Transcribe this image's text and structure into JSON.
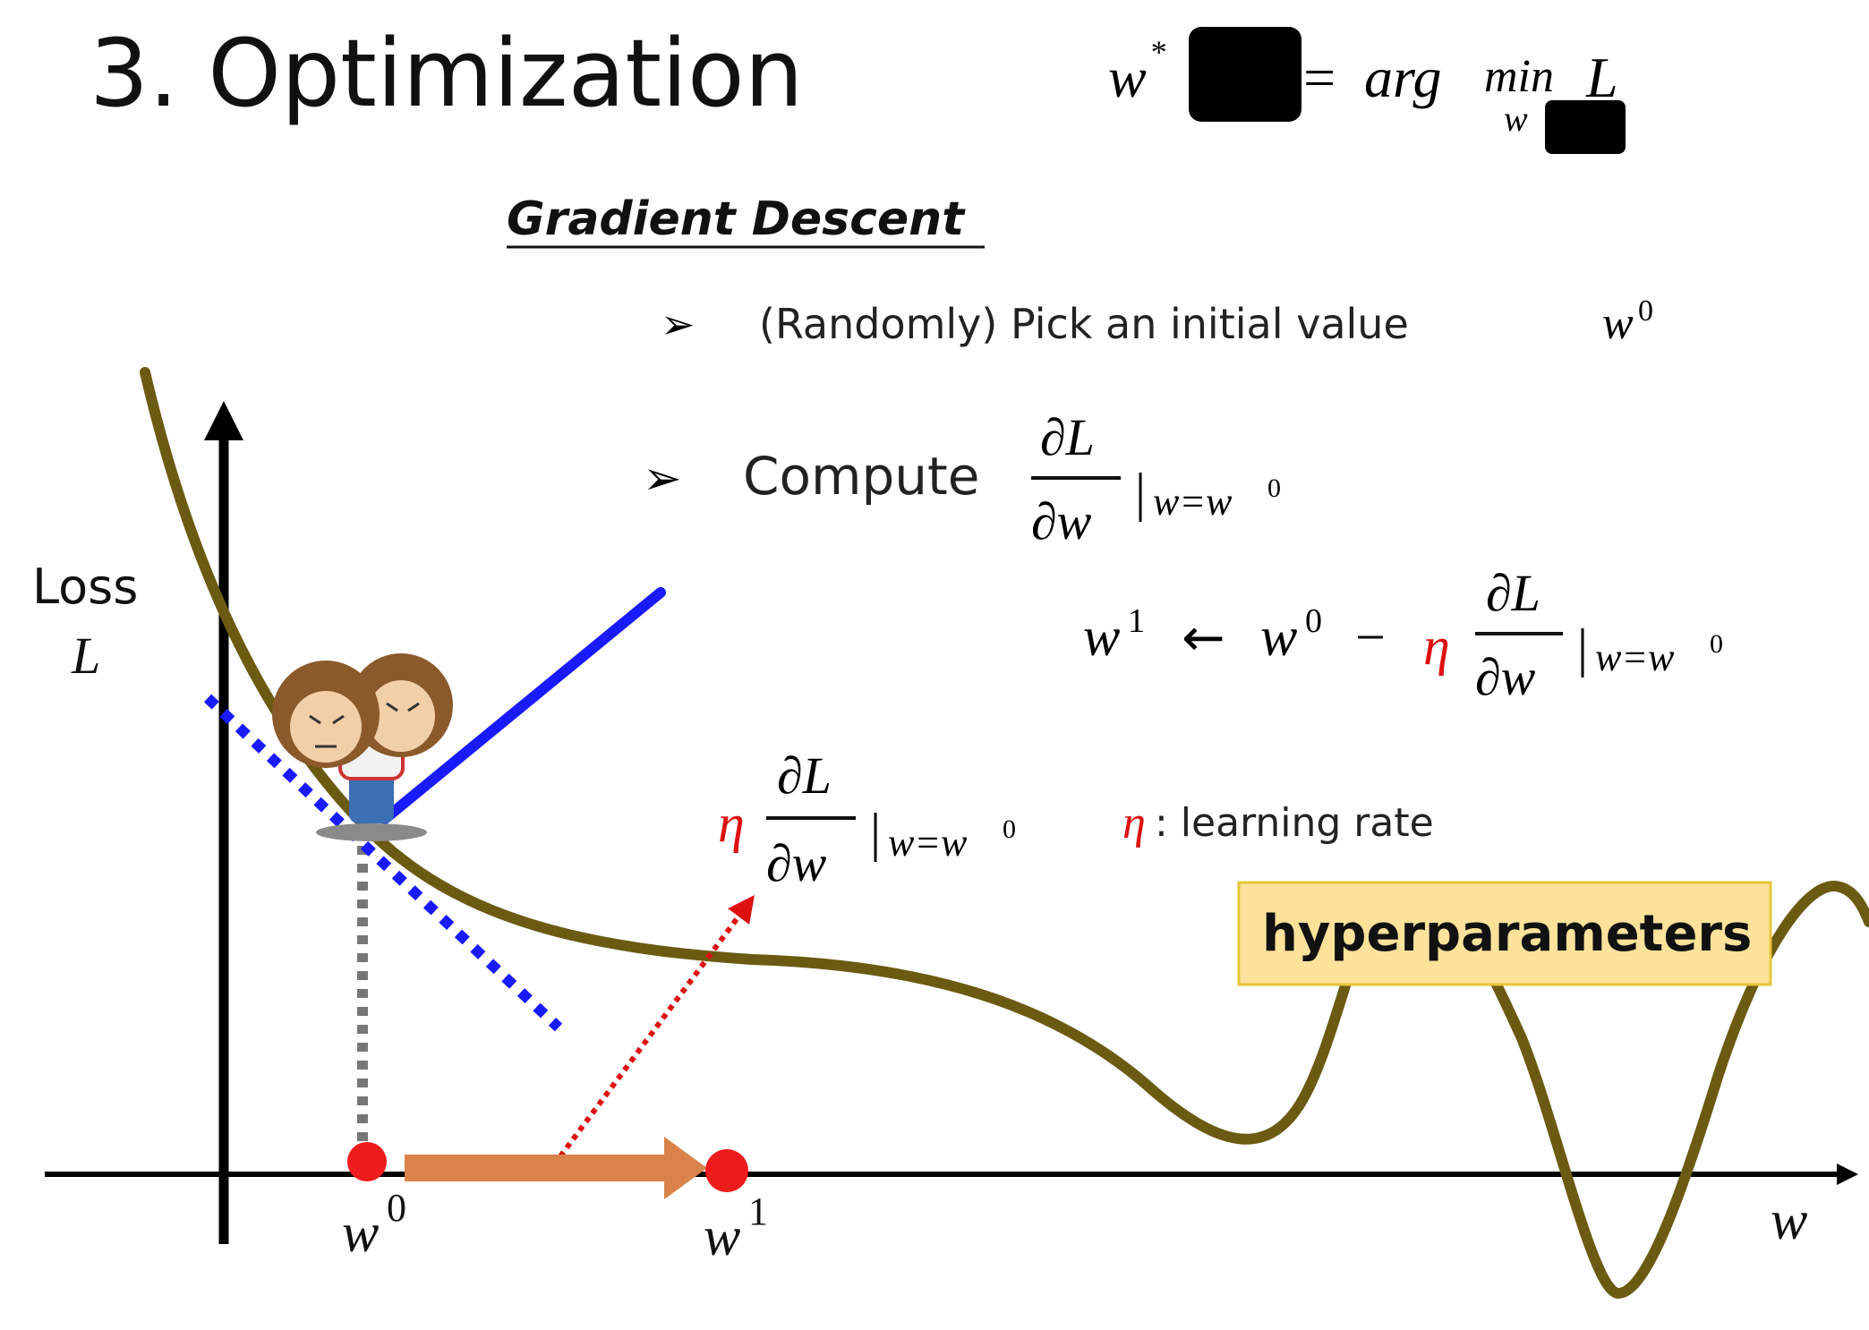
{
  "title": "3. Optimization",
  "objective": {
    "lhs": "w",
    "lhs_sup": "*",
    "equals": "=",
    "arg": "arg",
    "min": "min",
    "min_sub": "w",
    "loss": "L"
  },
  "section_heading": "Gradient Descent",
  "bullets": {
    "marker": "➢",
    "step1_text": "(Randomly) Pick an initial value",
    "step1_var": "w",
    "step1_sup": "0",
    "step2_text": "Compute"
  },
  "math": {
    "partial_L": "∂L",
    "partial_w": "∂w",
    "bar": "|",
    "eval_w": "w=w",
    "eval_sup": "0",
    "update_lhs": "w",
    "update_lhs_sup": "1",
    "arrow_left": "←",
    "update_rhs": "w",
    "update_rhs_sup": "0",
    "minus": "−",
    "eta": "η"
  },
  "learning_rate_label": ": learning rate",
  "hyperparameters_label": "hyperparameters",
  "axes": {
    "ylabel_line1": "Loss",
    "ylabel_line2": "L",
    "xlabel": "w"
  },
  "points": {
    "w0_label": "w",
    "w0_sup": "0",
    "w1_label": "w",
    "w1_sup": "1"
  },
  "colors": {
    "curve": "#6b5a12",
    "tangent": "#1a1aff",
    "eta": "#dd1111",
    "point": "#ee1c1c",
    "step_arrow": "#d9834a",
    "highlight_fill": "#fce29a",
    "highlight_border": "#e6c53a"
  }
}
